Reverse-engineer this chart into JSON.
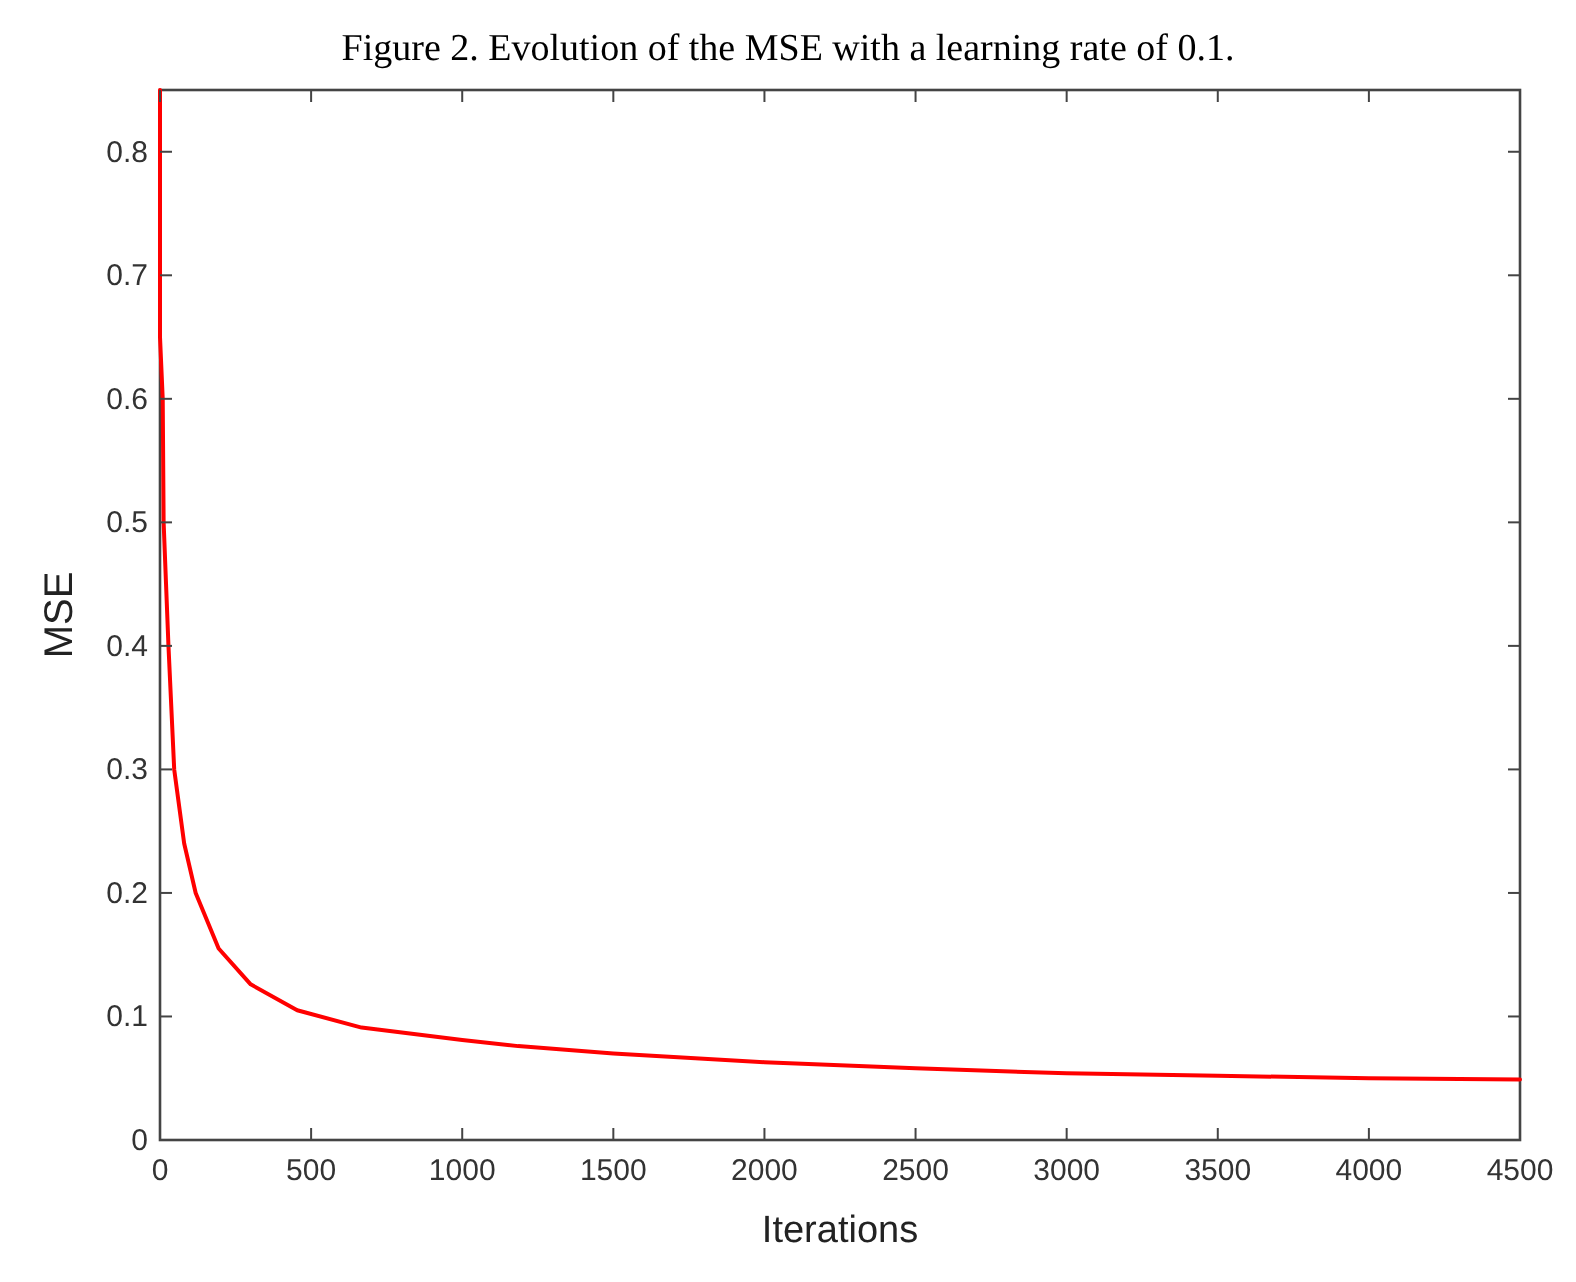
{
  "chart_data": {
    "type": "line",
    "title": "Figure 2. Evolution of the MSE with a learning rate of 0.1.",
    "xlabel": "Iterations",
    "ylabel": "MSE",
    "series": [
      {
        "color": "#ff0000",
        "x": [
          0,
          0,
          9,
          12,
          20,
          28,
          47,
          80,
          118,
          194,
          300,
          454,
          667,
          1000,
          1185,
          1500,
          2000,
          2500,
          3000,
          3500,
          4000,
          4500
        ],
        "values": [
          0.85,
          0.65,
          0.6,
          0.5,
          0.45,
          0.4,
          0.3,
          0.24,
          0.2,
          0.155,
          0.126,
          0.105,
          0.091,
          0.081,
          0.076,
          0.07,
          0.063,
          0.058,
          0.054,
          0.052,
          0.05,
          0.049
        ]
      }
    ],
    "xlim": [
      0,
      4500
    ],
    "ylim": [
      0,
      0.85
    ],
    "xticks": [
      0,
      500,
      1000,
      1500,
      2000,
      2500,
      3000,
      3500,
      4000,
      4500
    ],
    "yticks": [
      0,
      0.1,
      0.2,
      0.3,
      0.4,
      0.5,
      0.6,
      0.7,
      0.8
    ],
    "grid": false,
    "marker": "none",
    "line_style": "solid"
  }
}
